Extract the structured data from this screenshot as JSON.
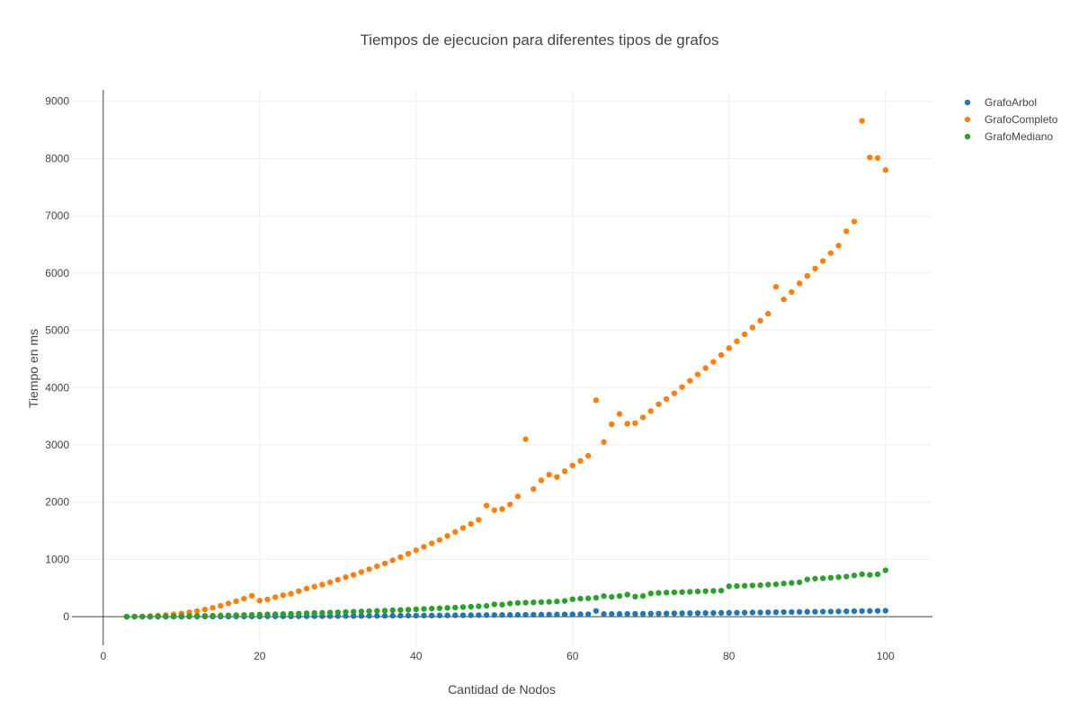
{
  "chart_data": {
    "type": "scatter",
    "title": "Tiempos de ejecucion para diferentes tipos de grafos",
    "xlabel": "Cantidad de Nodos",
    "ylabel": "Tiempo en ms",
    "xlim": [
      -4,
      106
    ],
    "ylim": [
      -500,
      9200
    ],
    "xticks": [
      0,
      20,
      40,
      60,
      80,
      100
    ],
    "yticks": [
      0,
      1000,
      2000,
      3000,
      4000,
      5000,
      6000,
      7000,
      8000,
      9000
    ],
    "grid": true,
    "legend": "top-right",
    "series": [
      {
        "name": "GrafoArbol",
        "color": "#1f77b4",
        "x": [
          3,
          4,
          5,
          6,
          7,
          8,
          9,
          10,
          11,
          12,
          13,
          14,
          15,
          16,
          17,
          18,
          19,
          20,
          21,
          22,
          23,
          24,
          25,
          26,
          27,
          28,
          29,
          30,
          31,
          32,
          33,
          34,
          35,
          36,
          37,
          38,
          39,
          40,
          41,
          42,
          43,
          44,
          45,
          46,
          47,
          48,
          49,
          50,
          51,
          52,
          53,
          54,
          55,
          56,
          57,
          58,
          59,
          60,
          61,
          62,
          63,
          64,
          65,
          66,
          67,
          68,
          69,
          70,
          71,
          72,
          73,
          74,
          75,
          76,
          77,
          78,
          79,
          80,
          81,
          82,
          83,
          84,
          85,
          86,
          87,
          88,
          89,
          90,
          91,
          92,
          93,
          94,
          95,
          96,
          97,
          98,
          99,
          100
        ],
        "y": [
          0,
          0,
          0,
          0,
          0,
          1,
          1,
          1,
          2,
          2,
          2,
          3,
          3,
          3,
          4,
          4,
          5,
          5,
          6,
          6,
          7,
          7,
          8,
          8,
          9,
          10,
          10,
          11,
          12,
          12,
          13,
          14,
          14,
          15,
          16,
          17,
          18,
          19,
          20,
          21,
          22,
          23,
          24,
          25,
          26,
          27,
          28,
          29,
          30,
          31,
          32,
          33,
          34,
          36,
          37,
          38,
          39,
          40,
          42,
          43,
          100,
          46,
          47,
          48,
          49,
          51,
          52,
          54,
          55,
          56,
          58,
          59,
          61,
          62,
          64,
          65,
          67,
          68,
          70,
          71,
          73,
          74,
          76,
          78,
          80,
          81,
          83,
          85,
          86,
          88,
          90,
          92,
          94,
          96,
          98,
          100,
          102,
          104
        ]
      },
      {
        "name": "GrafoCompleto",
        "color": "#ff7f0e",
        "x": [
          3,
          4,
          5,
          6,
          7,
          8,
          9,
          10,
          11,
          12,
          13,
          14,
          15,
          16,
          17,
          18,
          19,
          20,
          21,
          22,
          23,
          24,
          25,
          26,
          27,
          28,
          29,
          30,
          31,
          32,
          33,
          34,
          35,
          36,
          37,
          38,
          39,
          40,
          41,
          42,
          43,
          44,
          45,
          46,
          47,
          48,
          49,
          50,
          51,
          52,
          53,
          54,
          55,
          56,
          57,
          58,
          59,
          60,
          61,
          62,
          63,
          64,
          65,
          66,
          67,
          68,
          69,
          70,
          71,
          72,
          73,
          74,
          75,
          76,
          77,
          78,
          79,
          80,
          81,
          82,
          83,
          84,
          85,
          86,
          87,
          88,
          89,
          90,
          91,
          92,
          93,
          94,
          95,
          96,
          97,
          98,
          99,
          100
        ],
        "y": [
          0,
          2,
          5,
          10,
          18,
          28,
          40,
          56,
          75,
          98,
          125,
          155,
          190,
          230,
          270,
          315,
          365,
          280,
          300,
          340,
          375,
          400,
          445,
          490,
          525,
          560,
          600,
          645,
          690,
          730,
          780,
          830,
          880,
          930,
          985,
          1040,
          1100,
          1160,
          1220,
          1280,
          1340,
          1410,
          1480,
          1550,
          1620,
          1690,
          1940,
          1860,
          1880,
          1960,
          2100,
          3100,
          2230,
          2380,
          2480,
          2440,
          2540,
          2640,
          2720,
          2810,
          3780,
          3050,
          3360,
          3540,
          3370,
          3380,
          3480,
          3590,
          3710,
          3800,
          3900,
          4010,
          4120,
          4230,
          4340,
          4450,
          4570,
          4690,
          4810,
          4930,
          5050,
          5170,
          5290,
          5760,
          5540,
          5670,
          5820,
          5950,
          6080,
          6210,
          6350,
          6480,
          6730,
          6900,
          8660,
          8020,
          8010,
          7800
        ]
      },
      {
        "name": "GrafoMediano",
        "color": "#2ca02c",
        "x": [
          3,
          4,
          5,
          6,
          7,
          8,
          9,
          10,
          11,
          12,
          13,
          14,
          15,
          16,
          17,
          18,
          19,
          20,
          21,
          22,
          23,
          24,
          25,
          26,
          27,
          28,
          29,
          30,
          31,
          32,
          33,
          34,
          35,
          36,
          37,
          38,
          39,
          40,
          41,
          42,
          43,
          44,
          45,
          46,
          47,
          48,
          49,
          50,
          51,
          52,
          53,
          54,
          55,
          56,
          57,
          58,
          59,
          60,
          61,
          62,
          63,
          64,
          65,
          66,
          67,
          68,
          69,
          70,
          71,
          72,
          73,
          74,
          75,
          76,
          77,
          78,
          79,
          80,
          81,
          82,
          83,
          84,
          85,
          86,
          87,
          88,
          89,
          90,
          91,
          92,
          93,
          94,
          95,
          96,
          97,
          98,
          99,
          100
        ],
        "y": [
          0,
          1,
          2,
          3,
          4,
          5,
          7,
          9,
          11,
          13,
          15,
          17,
          20,
          23,
          26,
          29,
          32,
          36,
          40,
          43,
          47,
          51,
          55,
          59,
          63,
          67,
          72,
          76,
          81,
          86,
          91,
          96,
          101,
          106,
          112,
          117,
          123,
          129,
          135,
          141,
          147,
          154,
          160,
          167,
          174,
          181,
          188,
          215,
          210,
          230,
          240,
          245,
          250,
          255,
          260,
          265,
          275,
          305,
          315,
          320,
          330,
          360,
          345,
          360,
          385,
          350,
          360,
          405,
          415,
          420,
          425,
          430,
          435,
          440,
          445,
          450,
          455,
          530,
          535,
          540,
          545,
          550,
          560,
          565,
          580,
          590,
          600,
          650,
          665,
          670,
          680,
          690,
          700,
          720,
          740,
          730,
          740,
          810
        ]
      }
    ]
  }
}
